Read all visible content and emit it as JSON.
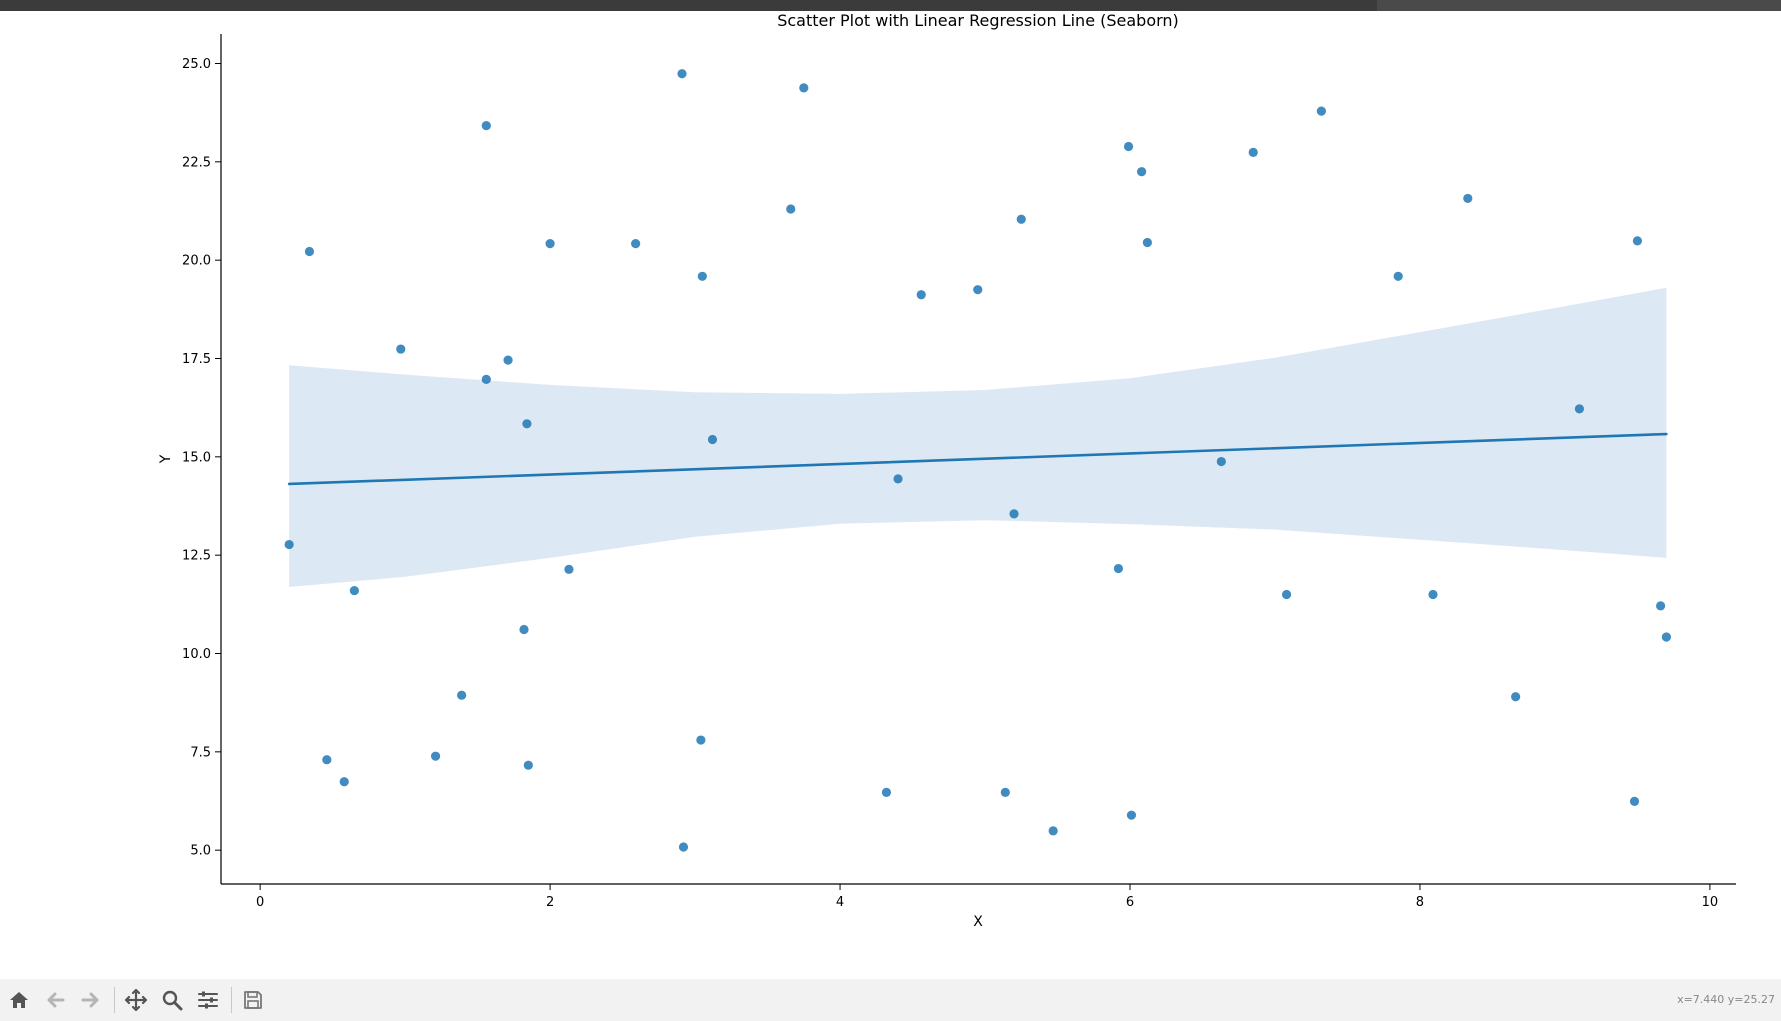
{
  "window": {
    "background": "#ffffff",
    "titlebar_color": "#3b3b3b"
  },
  "chart_data": {
    "type": "scatter",
    "title": "Scatter Plot with Linear Regression Line (Seaborn)",
    "xlabel": "X",
    "ylabel": "Y",
    "xlim": [
      -0.27,
      10.18
    ],
    "ylim": [
      4.14,
      25.75
    ],
    "xticks": [
      0,
      2,
      4,
      6,
      8,
      10
    ],
    "yticks": [
      5.0,
      7.5,
      10.0,
      12.5,
      15.0,
      17.5,
      20.0,
      22.5,
      25.0
    ],
    "grid": false,
    "legend": "none",
    "colors": {
      "points": "#1f77b4",
      "line": "#1f77b4",
      "band": "#dce9f4"
    },
    "points": [
      [
        0.2,
        12.77
      ],
      [
        0.34,
        20.22
      ],
      [
        0.46,
        7.3
      ],
      [
        0.58,
        6.74
      ],
      [
        0.65,
        11.6
      ],
      [
        0.97,
        17.74
      ],
      [
        1.21,
        7.39
      ],
      [
        1.39,
        8.94
      ],
      [
        1.56,
        23.42
      ],
      [
        1.56,
        16.97
      ],
      [
        1.71,
        17.46
      ],
      [
        1.82,
        10.61
      ],
      [
        1.84,
        15.84
      ],
      [
        1.85,
        7.16
      ],
      [
        2.0,
        20.42
      ],
      [
        2.13,
        12.14
      ],
      [
        2.59,
        20.42
      ],
      [
        2.91,
        24.74
      ],
      [
        2.92,
        5.08
      ],
      [
        3.04,
        7.8
      ],
      [
        3.05,
        19.59
      ],
      [
        3.12,
        15.44
      ],
      [
        3.66,
        21.3
      ],
      [
        3.75,
        24.38
      ],
      [
        4.32,
        6.47
      ],
      [
        4.4,
        14.44
      ],
      [
        4.56,
        19.12
      ],
      [
        4.95,
        19.25
      ],
      [
        5.14,
        6.47
      ],
      [
        5.2,
        13.55
      ],
      [
        5.25,
        21.04
      ],
      [
        5.47,
        5.49
      ],
      [
        5.92,
        12.16
      ],
      [
        5.99,
        22.89
      ],
      [
        6.01,
        5.89
      ],
      [
        6.08,
        22.25
      ],
      [
        6.12,
        20.45
      ],
      [
        6.63,
        14.88
      ],
      [
        6.85,
        22.74
      ],
      [
        7.08,
        11.5
      ],
      [
        7.32,
        23.79
      ],
      [
        7.85,
        19.59
      ],
      [
        8.09,
        11.5
      ],
      [
        8.33,
        21.57
      ],
      [
        8.66,
        8.9
      ],
      [
        9.1,
        16.22
      ],
      [
        9.48,
        6.24
      ],
      [
        9.5,
        20.49
      ],
      [
        9.66,
        11.21
      ],
      [
        9.7,
        10.42
      ]
    ],
    "regression": {
      "x": [
        0.2,
        9.7
      ],
      "y": [
        14.31,
        15.58
      ]
    },
    "confidence_band": {
      "x": [
        0.2,
        1.0,
        2.0,
        3.0,
        4.0,
        5.0,
        6.0,
        7.0,
        8.0,
        9.0,
        9.7
      ],
      "upper": [
        17.33,
        17.09,
        16.83,
        16.64,
        16.6,
        16.7,
        17.0,
        17.52,
        18.17,
        18.83,
        19.3
      ],
      "lower": [
        11.69,
        11.95,
        12.43,
        12.97,
        13.3,
        13.39,
        13.29,
        13.15,
        12.89,
        12.63,
        12.43
      ]
    }
  },
  "toolbar": {
    "icons": [
      "home-icon",
      "back-icon",
      "forward-icon",
      "pan-icon",
      "zoom-icon",
      "configure-icon",
      "save-icon"
    ],
    "status": "x=7.440 y=25.27"
  }
}
